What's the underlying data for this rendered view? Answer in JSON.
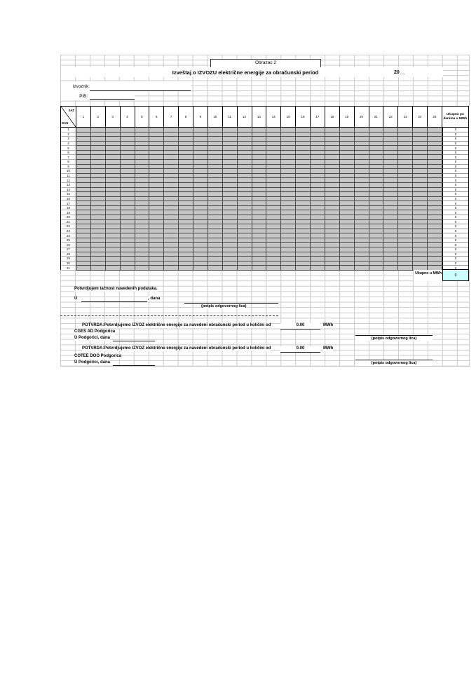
{
  "page": {
    "obrazac_label": "Obrazac 2",
    "title": "Izveštaj o IZVOZU električne energije za obračunski period",
    "year_text": "20__"
  },
  "form": {
    "izvoznik_label": "Izvoznik:",
    "pib_label": "PIB:"
  },
  "table": {
    "corner_top": "SAT",
    "corner_bottom": "DAN",
    "hours": [
      "1",
      "2",
      "3",
      "4",
      "5",
      "6",
      "7",
      "8",
      "9",
      "10",
      "11",
      "12",
      "13",
      "14",
      "15",
      "16",
      "17",
      "18",
      "19",
      "20",
      "21",
      "22",
      "23",
      "24",
      "25"
    ],
    "total_col_header": "Ukupno po danima u MWh",
    "days": [
      "1",
      "2",
      "3",
      "4",
      "5",
      "6",
      "7",
      "8",
      "9",
      "10",
      "11",
      "12",
      "13",
      "14",
      "15",
      "16",
      "17",
      "18",
      "19",
      "20",
      "21",
      "22",
      "23",
      "24",
      "25",
      "26",
      "27",
      "28",
      "29",
      "30",
      "31"
    ],
    "day_totals": [
      "0",
      "0",
      "0",
      "0",
      "0",
      "0",
      "0",
      "0",
      "0",
      "0",
      "0",
      "0",
      "0",
      "0",
      "0",
      "0",
      "0",
      "0",
      "0",
      "0",
      "0",
      "0",
      "0",
      "0",
      "0",
      "0",
      "0",
      "0",
      "0",
      "0",
      "0"
    ],
    "grand_total_label": "Ukupno u MWh",
    "grand_total_value": "0",
    "colors": {
      "cell_gray": "#c6c6c6",
      "total_cyan": "#ccffff"
    }
  },
  "footer": {
    "confirm_text": "Potvrdjujem tačnost navedenih podataka.",
    "u_label": "U",
    "dana_label": ", dana",
    "signature_label": "(potpis odgovornog lica)",
    "potvrda1": {
      "text": "POTVRDA:Potvrdjujemo IZVOZ električne energije za navedeni obračunski period u količini od",
      "value": "0.00",
      "unit": "MWh",
      "company": "CGES AD Podgorica",
      "place_line": "U Podgorici, dana",
      "signature_label": "(potpis odgovornog lica)"
    },
    "potvrda2": {
      "text": "POTVRDA:Potvrdjujemo IZVOZ električne energije za navedeni obračunski period u količini od",
      "value": "0.00",
      "unit": "MWh",
      "company": "COTEE DOO Podgorica",
      "place_line": "U Podgorici, dana",
      "signature_label": "(potpis odgovornog lica)"
    }
  }
}
